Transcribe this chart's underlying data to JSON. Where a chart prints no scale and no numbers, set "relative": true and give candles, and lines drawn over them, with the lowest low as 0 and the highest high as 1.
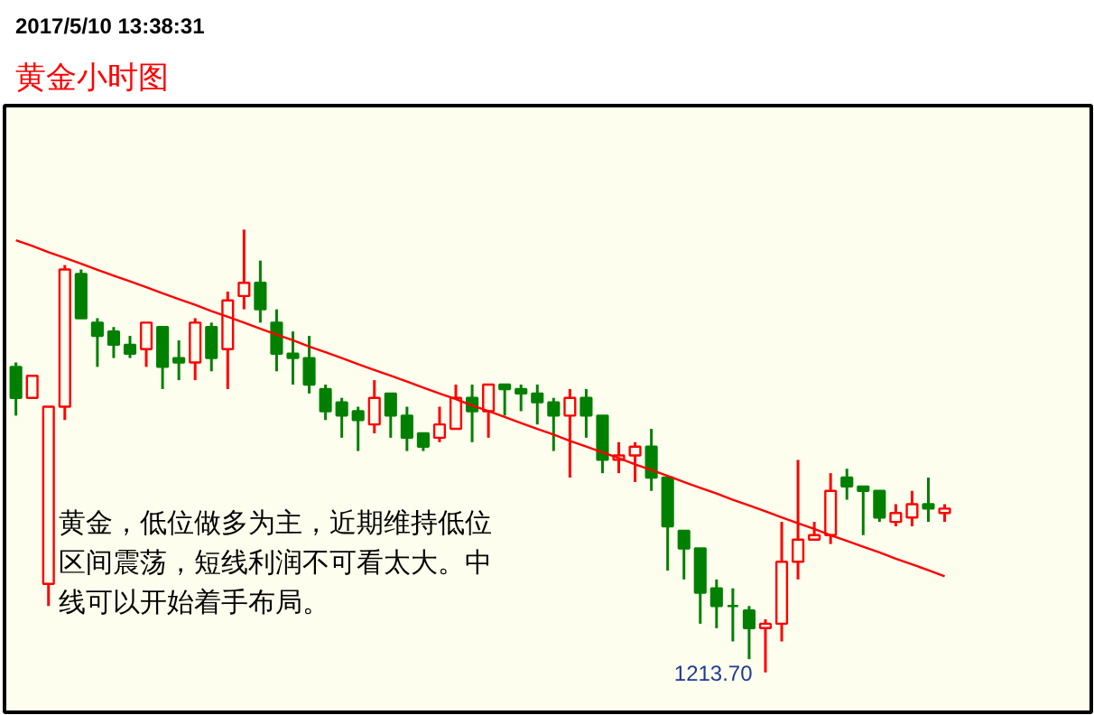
{
  "chart_data": {
    "type": "candlestick",
    "title": "黄金小时图",
    "subtitle": "2017/5/10 13:38:31",
    "relative": true,
    "categories": [
      null,
      null,
      null,
      null,
      null,
      null,
      null,
      null,
      null,
      null,
      null,
      null,
      null,
      null,
      null,
      null,
      null,
      null,
      null,
      null,
      null,
      null,
      null,
      null,
      null,
      null,
      null,
      null,
      null,
      null,
      null,
      null,
      null,
      null,
      null,
      null,
      null,
      null,
      null,
      null,
      null,
      null,
      null,
      null,
      null,
      null,
      null,
      null,
      null,
      null,
      null,
      null,
      null,
      null,
      null,
      null,
      null,
      null
    ],
    "ohlc": [
      [
        0.69,
        0.7,
        0.58,
        0.62
      ],
      [
        0.62,
        0.67,
        0.62,
        0.67
      ],
      [
        0.2,
        0.6,
        0.15,
        0.6
      ],
      [
        0.6,
        0.92,
        0.57,
        0.91
      ],
      [
        0.9,
        0.91,
        0.8,
        0.8
      ],
      [
        0.79,
        0.8,
        0.69,
        0.76
      ],
      [
        0.77,
        0.78,
        0.71,
        0.74
      ],
      [
        0.74,
        0.76,
        0.71,
        0.72
      ],
      [
        0.73,
        0.79,
        0.69,
        0.79
      ],
      [
        0.78,
        0.78,
        0.64,
        0.69
      ],
      [
        0.71,
        0.75,
        0.66,
        0.7
      ],
      [
        0.7,
        0.8,
        0.66,
        0.79
      ],
      [
        0.78,
        0.79,
        0.68,
        0.71
      ],
      [
        0.73,
        0.86,
        0.64,
        0.84
      ],
      [
        0.85,
        1.0,
        0.82,
        0.88
      ],
      [
        0.88,
        0.93,
        0.79,
        0.82
      ],
      [
        0.79,
        0.82,
        0.68,
        0.72
      ],
      [
        0.72,
        0.77,
        0.65,
        0.71
      ],
      [
        0.71,
        0.76,
        0.63,
        0.65
      ],
      [
        0.64,
        0.65,
        0.57,
        0.59
      ],
      [
        0.61,
        0.62,
        0.53,
        0.58
      ],
      [
        0.59,
        0.6,
        0.5,
        0.57
      ],
      [
        0.56,
        0.66,
        0.54,
        0.62
      ],
      [
        0.63,
        0.63,
        0.53,
        0.58
      ],
      [
        0.58,
        0.6,
        0.5,
        0.53
      ],
      [
        0.54,
        0.54,
        0.5,
        0.51
      ],
      [
        0.53,
        0.6,
        0.52,
        0.56
      ],
      [
        0.55,
        0.65,
        0.55,
        0.62
      ],
      [
        0.62,
        0.65,
        0.52,
        0.59
      ],
      [
        0.59,
        0.65,
        0.53,
        0.65
      ],
      [
        0.65,
        0.65,
        0.58,
        0.64
      ],
      [
        0.64,
        0.65,
        0.59,
        0.63
      ],
      [
        0.63,
        0.65,
        0.56,
        0.61
      ],
      [
        0.61,
        0.62,
        0.5,
        0.58
      ],
      [
        0.58,
        0.64,
        0.44,
        0.62
      ],
      [
        0.62,
        0.64,
        0.53,
        0.58
      ],
      [
        0.58,
        0.58,
        0.45,
        0.48
      ],
      [
        0.48,
        0.52,
        0.45,
        0.49
      ],
      [
        0.49,
        0.52,
        0.43,
        0.51
      ],
      [
        0.51,
        0.55,
        0.41,
        0.44
      ],
      [
        0.44,
        0.44,
        0.23,
        0.33
      ],
      [
        0.32,
        0.32,
        0.21,
        0.28
      ],
      [
        0.28,
        0.28,
        0.11,
        0.18
      ],
      [
        0.19,
        0.21,
        0.1,
        0.15
      ],
      [
        0.15,
        0.19,
        0.07,
        0.15
      ],
      [
        0.14,
        0.15,
        0.03,
        0.1
      ],
      [
        0.1,
        0.12,
        0.0,
        0.11
      ],
      [
        0.11,
        0.34,
        0.07,
        0.25
      ],
      [
        0.25,
        0.48,
        0.21,
        0.3
      ],
      [
        0.3,
        0.34,
        0.3,
        0.31
      ],
      [
        0.31,
        0.45,
        0.29,
        0.41
      ],
      [
        0.44,
        0.46,
        0.39,
        0.42
      ],
      [
        0.42,
        0.42,
        0.31,
        0.41
      ],
      [
        0.41,
        0.41,
        0.34,
        0.35
      ],
      [
        0.34,
        0.38,
        0.33,
        0.36
      ],
      [
        0.35,
        0.41,
        0.33,
        0.38
      ],
      [
        0.38,
        0.44,
        0.34,
        0.37
      ],
      [
        0.36,
        0.38,
        0.34,
        0.37
      ]
    ],
    "colors": [
      "#008000",
      "#ff0000",
      "#ff0000",
      "#ff0000",
      "#008000",
      "#008000",
      "#008000",
      "#008000",
      "#ff0000",
      "#008000",
      "#008000",
      "#ff0000",
      "#008000",
      "#ff0000",
      "#ff0000",
      "#008000",
      "#008000",
      "#008000",
      "#008000",
      "#008000",
      "#008000",
      "#008000",
      "#ff0000",
      "#008000",
      "#008000",
      "#008000",
      "#ff0000",
      "#ff0000",
      "#008000",
      "#ff0000",
      "#008000",
      "#008000",
      "#008000",
      "#008000",
      "#ff0000",
      "#008000",
      "#008000",
      "#ff0000",
      "#ff0000",
      "#008000",
      "#008000",
      "#008000",
      "#008000",
      "#008000",
      "#008000",
      "#008000",
      "#ff0000",
      "#ff0000",
      "#ff0000",
      "#ff0000",
      "#ff0000",
      "#008000",
      "#008000",
      "#008000",
      "#ff0000",
      "#ff0000",
      "#008000",
      "#ff0000"
    ],
    "series": [
      {
        "type": "line",
        "values": [
          0.976,
          0.963,
          0.949,
          0.936,
          0.923,
          0.909,
          0.896,
          0.883,
          0.87,
          0.856,
          0.843,
          0.83,
          0.816,
          0.803,
          0.79,
          0.776,
          0.763,
          0.75,
          0.736,
          0.723,
          0.71,
          0.696,
          0.683,
          0.67,
          0.657,
          0.643,
          0.63,
          0.617,
          0.603,
          0.59,
          0.577,
          0.563,
          0.55,
          0.537,
          0.523,
          0.51,
          0.497,
          0.484,
          0.47,
          0.457,
          0.444,
          0.43,
          0.417,
          0.404,
          0.39,
          0.377,
          0.364,
          0.35,
          0.337,
          0.324,
          0.31,
          0.297,
          0.284,
          0.271,
          0.257,
          0.244,
          0.231,
          0.217
        ],
        "color": "#ff0000"
      }
    ],
    "annotations": [
      "黄金，低位做多为主，近期维持低位区间震荡，短线利润不可看太大。中线可以开始着手布局。",
      "1213.70"
    ]
  }
}
